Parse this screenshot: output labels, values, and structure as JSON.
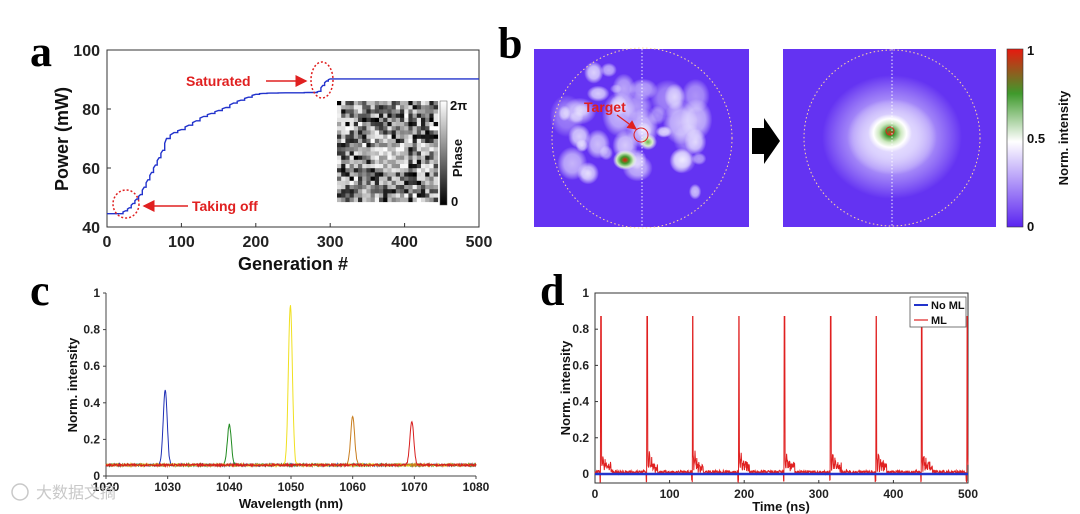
{
  "panels": {
    "a": "a",
    "b": "b",
    "c": "c",
    "d": "d"
  },
  "watermark": "大数据文摘",
  "colors": {
    "blue": "#2233cc",
    "red": "#e02020",
    "annot": "#e02020"
  },
  "chart_data": [
    {
      "id": "a",
      "type": "line",
      "xlabel": "Generation #",
      "ylabel": "Power (mW)",
      "xlim": [
        0,
        500
      ],
      "ylim": [
        40,
        100
      ],
      "xticks": [
        "0",
        "100",
        "200",
        "300",
        "400",
        "500"
      ],
      "yticks": [
        "40",
        "60",
        "80",
        "100"
      ],
      "series": [
        {
          "name": "Power",
          "x": [
            0,
            18,
            25,
            30,
            35,
            40,
            45,
            50,
            55,
            60,
            65,
            70,
            75,
            80,
            90,
            100,
            110,
            120,
            130,
            140,
            150,
            160,
            170,
            180,
            190,
            200,
            210,
            220,
            240,
            260,
            270,
            280,
            285,
            290,
            295,
            300,
            500
          ],
          "y": [
            44.5,
            44.5,
            45.5,
            46.5,
            48,
            49.5,
            51,
            53.5,
            56,
            58.5,
            61,
            63.5,
            66,
            70,
            72,
            73,
            74.5,
            76,
            77.5,
            78.5,
            79.5,
            80.5,
            82,
            83,
            84,
            85,
            85.3,
            85.4,
            85.5,
            85.5,
            85.6,
            85.6,
            86,
            88,
            89.5,
            90.2,
            90.2
          ]
        }
      ],
      "annotations": [
        "Saturated",
        "Taking off"
      ],
      "inset": {
        "label": "Phase",
        "max_label": "2π",
        "min_label": "0"
      }
    },
    {
      "id": "b",
      "type": "heatmap",
      "colorbar_label": "Norm. intensity",
      "colorbar_ticks": [
        "1",
        "0.5",
        "0"
      ],
      "annotations": [
        "Target"
      ]
    },
    {
      "id": "c",
      "type": "line",
      "xlabel": "Wavelength (nm)",
      "ylabel": "Norm. intensity",
      "xlim": [
        1020,
        1080
      ],
      "ylim": [
        0,
        1
      ],
      "xticks": [
        "1020",
        "1030",
        "1040",
        "1050",
        "1060",
        "1070",
        "1080"
      ],
      "yticks": [
        "0",
        "0.2",
        "0.4",
        "0.6",
        "0.8",
        "1"
      ],
      "baseline": 0.06,
      "series": [
        {
          "name": "1030 nm",
          "color": "#1f2fb5",
          "center": 1029.6,
          "peak": 0.47
        },
        {
          "name": "1040 nm",
          "color": "#1f8a1f",
          "center": 1040.0,
          "peak": 0.28
        },
        {
          "name": "1050 nm",
          "color": "#f0e020",
          "center": 1049.9,
          "peak": 0.93
        },
        {
          "name": "1060 nm",
          "color": "#c87d1e",
          "center": 1060.0,
          "peak": 0.33
        },
        {
          "name": "1070 nm",
          "color": "#d81e1e",
          "center": 1069.6,
          "peak": 0.3
        }
      ]
    },
    {
      "id": "d",
      "type": "line",
      "xlabel": "Time (ns)",
      "ylabel": "Norm. intensity",
      "xlim": [
        0,
        500
      ],
      "ylim": [
        -0.05,
        1
      ],
      "xticks": [
        "0",
        "100",
        "200",
        "300",
        "400",
        "500"
      ],
      "yticks": [
        "0",
        "0.2",
        "0.4",
        "0.6",
        "0.8",
        "1"
      ],
      "legend": "top-right",
      "series": [
        {
          "name": "No ML",
          "color": "#2233cc",
          "values": 0.0
        },
        {
          "name": "ML",
          "color": "#e02020",
          "pulse_times": [
            8,
            70,
            131,
            193,
            254,
            316,
            377,
            438,
            499
          ],
          "pulse_peak": 0.87
        }
      ]
    }
  ]
}
